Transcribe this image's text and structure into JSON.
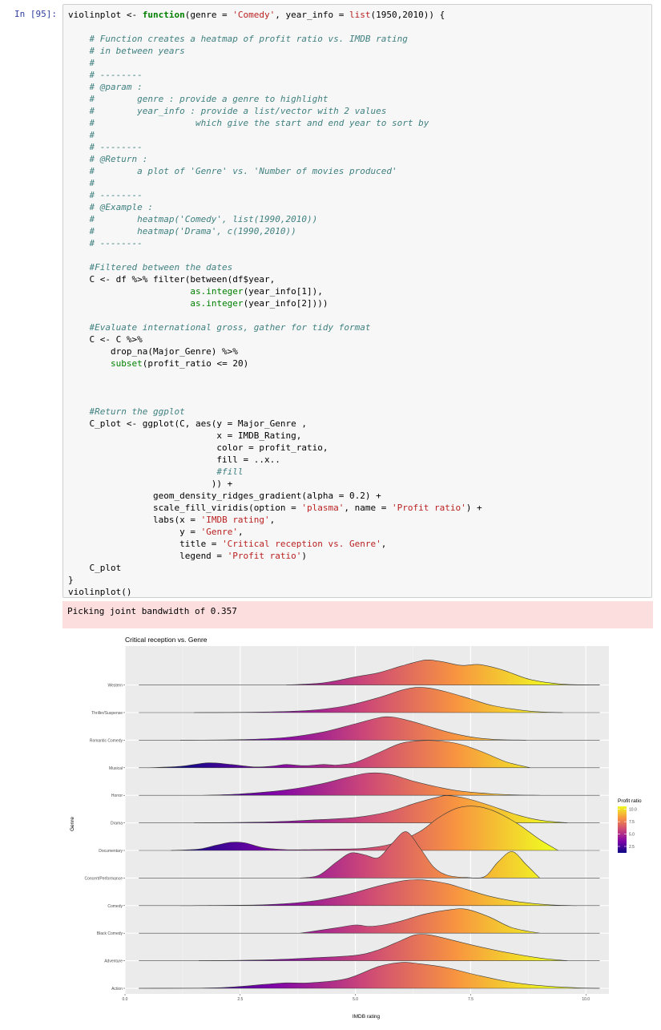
{
  "cell": {
    "prompt": "In [95]:",
    "code_lines": [
      [
        [
          "violinplot <- ",
          ""
        ],
        [
          "function",
          "k"
        ],
        [
          "(genre = ",
          ""
        ],
        [
          "'Comedy'",
          "s"
        ],
        [
          ", year_info = ",
          ""
        ],
        [
          "list",
          "s"
        ],
        [
          "(1950,2010)) {",
          ""
        ]
      ],
      [
        [
          "",
          ""
        ]
      ],
      [
        [
          "    # Function creates a heatmap of profit ratio vs. IMDB rating",
          "c"
        ]
      ],
      [
        [
          "    # in between years",
          "c"
        ]
      ],
      [
        [
          "    #",
          "c"
        ]
      ],
      [
        [
          "    # --------",
          "c"
        ]
      ],
      [
        [
          "    # @param :",
          "c"
        ]
      ],
      [
        [
          "    #        genre : provide a genre to highlight",
          "c"
        ]
      ],
      [
        [
          "    #        year_info : provide a list/vector with 2 values",
          "c"
        ]
      ],
      [
        [
          "    #                   which give the start and end year to sort by",
          "c"
        ]
      ],
      [
        [
          "    #",
          "c"
        ]
      ],
      [
        [
          "    # --------",
          "c"
        ]
      ],
      [
        [
          "    # @Return :",
          "c"
        ]
      ],
      [
        [
          "    #        a plot of 'Genre' vs. 'Number of movies produced'",
          "c"
        ]
      ],
      [
        [
          "    #",
          "c"
        ]
      ],
      [
        [
          "    # --------",
          "c"
        ]
      ],
      [
        [
          "    # @Example :",
          "c"
        ]
      ],
      [
        [
          "    #        heatmap('Comedy', list(1990,2010))",
          "c"
        ]
      ],
      [
        [
          "    #        heatmap('Drama', c(1990,2010))",
          "c"
        ]
      ],
      [
        [
          "    # --------",
          "c"
        ]
      ],
      [
        [
          "",
          ""
        ]
      ],
      [
        [
          "    #Filtered between the dates",
          "c"
        ]
      ],
      [
        [
          "    C <- df %>% filter(between(df$year,",
          ""
        ]
      ],
      [
        [
          "                       ",
          ""
        ],
        [
          "as.integer",
          "n"
        ],
        [
          "(year_info[1]),",
          ""
        ]
      ],
      [
        [
          "                       ",
          ""
        ],
        [
          "as.integer",
          "n"
        ],
        [
          "(year_info[2])))",
          ""
        ]
      ],
      [
        [
          "",
          ""
        ]
      ],
      [
        [
          "    #Evaluate international gross, gather for tidy format",
          "c"
        ]
      ],
      [
        [
          "    C <- C %>%",
          ""
        ]
      ],
      [
        [
          "        drop_na(Major_Genre) %>%",
          ""
        ]
      ],
      [
        [
          "        ",
          ""
        ],
        [
          "subset",
          "n"
        ],
        [
          "(profit_ratio <= 20)",
          ""
        ]
      ],
      [
        [
          "",
          ""
        ]
      ],
      [
        [
          "",
          ""
        ]
      ],
      [
        [
          "",
          ""
        ]
      ],
      [
        [
          "    #Return the ggplot",
          "c"
        ]
      ],
      [
        [
          "    C_plot <- ggplot(C, aes(y = Major_Genre ,",
          ""
        ]
      ],
      [
        [
          "                            x = IMDB_Rating,",
          ""
        ]
      ],
      [
        [
          "                            color = profit_ratio,",
          ""
        ]
      ],
      [
        [
          "                            fill = ..x..",
          ""
        ]
      ],
      [
        [
          "                            #fill",
          "c"
        ]
      ],
      [
        [
          "                           )) +",
          ""
        ]
      ],
      [
        [
          "                geom_density_ridges_gradient(alpha = 0.2) +",
          ""
        ]
      ],
      [
        [
          "                scale_fill_viridis(option = ",
          ""
        ],
        [
          "'plasma'",
          "s"
        ],
        [
          ", name = ",
          ""
        ],
        [
          "'Profit ratio'",
          "s"
        ],
        [
          ") +",
          ""
        ]
      ],
      [
        [
          "                labs(x = ",
          ""
        ],
        [
          "'IMDB rating'",
          "s"
        ],
        [
          ",",
          ""
        ]
      ],
      [
        [
          "                     y = ",
          ""
        ],
        [
          "'Genre'",
          "s"
        ],
        [
          ",",
          ""
        ]
      ],
      [
        [
          "                     title = ",
          ""
        ],
        [
          "'Critical reception vs. Genre'",
          "s"
        ],
        [
          ",",
          ""
        ]
      ],
      [
        [
          "                     legend = ",
          ""
        ],
        [
          "'Profit ratio'",
          "s"
        ],
        [
          ")",
          ""
        ]
      ],
      [
        [
          "    C_plot",
          ""
        ]
      ],
      [
        [
          "}",
          ""
        ]
      ],
      [
        [
          "violinplot()",
          ""
        ]
      ]
    ]
  },
  "stderr": "Picking joint bandwidth of 0.357",
  "chart_data": {
    "type": "ridgeline",
    "title": "Critical reception vs. Genre",
    "xlabel": "IMDB rating",
    "ylabel": "Genre",
    "xlim": [
      0,
      10.5
    ],
    "x_ticks": [
      0.0,
      2.5,
      5.0,
      7.5,
      10.0
    ],
    "x_tick_labels": [
      "0.0",
      "2.5",
      "5.0",
      "7.5",
      "10.0"
    ],
    "grid": true,
    "legend": {
      "title": "Profit ratio",
      "position": "right",
      "ticks": [
        "10.0",
        "7.5",
        "5.0",
        "2.5"
      ],
      "palette": [
        "#0d0887",
        "#7e03a8",
        "#cc4778",
        "#f89540",
        "#f0f921"
      ]
    },
    "categories": [
      "Action",
      "Adventure",
      "Black Comedy",
      "Comedy",
      "Concert/Performance",
      "Documentary",
      "Drama",
      "Horror",
      "Musical",
      "Romantic Comedy",
      "Thriller/Suspense",
      "Western"
    ],
    "ridges": [
      {
        "genre": "Action",
        "x": [
          0.3,
          2.0,
          3.0,
          3.5,
          4.0,
          4.8,
          5.5,
          6.0,
          6.4,
          7.0,
          7.6,
          8.3,
          9.0,
          9.8,
          10.3
        ],
        "y": [
          0,
          0.02,
          0.14,
          0.2,
          0.2,
          0.35,
          0.8,
          0.95,
          0.9,
          0.75,
          0.5,
          0.25,
          0.1,
          0.02,
          0
        ]
      },
      {
        "genre": "Adventure",
        "x": [
          1.6,
          3.0,
          4.0,
          5.0,
          5.5,
          6.0,
          6.3,
          6.6,
          7.0,
          7.6,
          8.3,
          9.0,
          9.6
        ],
        "y": [
          0,
          0.03,
          0.1,
          0.2,
          0.4,
          0.75,
          0.95,
          0.95,
          0.8,
          0.55,
          0.3,
          0.1,
          0
        ]
      },
      {
        "genre": "Black Comedy",
        "x": [
          3.8,
          4.6,
          5.0,
          5.3,
          5.6,
          6.0,
          6.5,
          7.0,
          7.4,
          7.9,
          8.4,
          9.0
        ],
        "y": [
          0,
          0.2,
          0.3,
          0.25,
          0.3,
          0.45,
          0.7,
          0.85,
          0.88,
          0.6,
          0.2,
          0
        ]
      },
      {
        "genre": "Comedy",
        "x": [
          1.2,
          3.0,
          4.0,
          4.8,
          5.5,
          6.0,
          6.3,
          6.6,
          7.0,
          7.4,
          7.9,
          8.5,
          9.2,
          9.8
        ],
        "y": [
          0,
          0.03,
          0.15,
          0.4,
          0.72,
          0.9,
          0.95,
          0.92,
          0.8,
          0.6,
          0.35,
          0.15,
          0.03,
          0
        ]
      },
      {
        "genre": "Concert/Performance",
        "x": [
          3.8,
          4.2,
          4.6,
          4.9,
          5.2,
          5.5,
          5.8,
          6.1,
          6.4,
          6.7,
          7.0,
          7.4,
          7.8,
          8.1,
          8.4,
          8.7,
          9.0
        ],
        "y": [
          0,
          0.1,
          0.6,
          0.92,
          0.85,
          0.75,
          1.28,
          1.7,
          1.1,
          0.4,
          0.1,
          0.02,
          0.05,
          0.6,
          0.97,
          0.5,
          0
        ]
      },
      {
        "genre": "Documentary",
        "x": [
          1.0,
          1.6,
          2.0,
          2.3,
          2.6,
          3.0,
          3.5,
          4.0,
          4.6,
          5.2,
          5.8,
          6.4,
          6.8,
          7.2,
          7.6,
          8.0,
          8.5,
          9.0,
          9.4
        ],
        "y": [
          0,
          0.05,
          0.2,
          0.3,
          0.28,
          0.1,
          0.03,
          0.03,
          0.05,
          0.08,
          0.25,
          0.7,
          1.2,
          1.55,
          1.62,
          1.45,
          1.0,
          0.4,
          0
        ]
      },
      {
        "genre": "Drama",
        "x": [
          1.5,
          3.0,
          4.0,
          5.0,
          5.7,
          6.3,
          6.8,
          7.0,
          7.4,
          7.9,
          8.5,
          9.0,
          9.6
        ],
        "y": [
          0,
          0.03,
          0.1,
          0.2,
          0.4,
          0.72,
          0.95,
          1.0,
          0.9,
          0.65,
          0.3,
          0.1,
          0
        ]
      },
      {
        "genre": "Horror",
        "x": [
          1.7,
          2.5,
          3.5,
          4.2,
          4.8,
          5.2,
          5.5,
          5.8,
          6.3,
          6.8,
          7.3,
          8.0,
          8.6,
          9.0
        ],
        "y": [
          0,
          0.05,
          0.2,
          0.4,
          0.65,
          0.8,
          0.82,
          0.75,
          0.5,
          0.3,
          0.15,
          0.05,
          0.01,
          0
        ]
      },
      {
        "genre": "Musical",
        "x": [
          0.5,
          1.2,
          1.8,
          2.3,
          2.8,
          3.2,
          3.5,
          3.8,
          4.0,
          4.3,
          4.6,
          5.0,
          5.5,
          6.0,
          6.5,
          7.0,
          7.4,
          7.8,
          8.3,
          8.8
        ],
        "y": [
          0,
          0.05,
          0.18,
          0.12,
          0.03,
          0.06,
          0.12,
          0.08,
          0.08,
          0.12,
          0.1,
          0.2,
          0.55,
          0.9,
          1.0,
          0.95,
          0.8,
          0.55,
          0.2,
          0
        ]
      },
      {
        "genre": "Romantic Comedy",
        "x": [
          1.2,
          2.5,
          3.5,
          4.3,
          5.0,
          5.5,
          5.8,
          6.2,
          6.6,
          7.0,
          7.5,
          8.0,
          8.7
        ],
        "y": [
          0,
          0.02,
          0.1,
          0.3,
          0.6,
          0.82,
          0.85,
          0.7,
          0.5,
          0.3,
          0.12,
          0.03,
          0
        ]
      },
      {
        "genre": "Thriller/Suspense",
        "x": [
          1.5,
          3.0,
          4.0,
          4.8,
          5.5,
          6.0,
          6.3,
          6.6,
          7.0,
          7.5,
          8.0,
          8.8,
          9.5
        ],
        "y": [
          0,
          0.02,
          0.08,
          0.25,
          0.55,
          0.82,
          0.92,
          0.9,
          0.75,
          0.5,
          0.25,
          0.05,
          0
        ]
      },
      {
        "genre": "Western",
        "x": [
          3.5,
          4.3,
          5.0,
          5.5,
          6.0,
          6.4,
          6.6,
          6.9,
          7.3,
          7.7,
          8.2,
          8.8,
          9.5,
          10.3
        ],
        "y": [
          0,
          0.08,
          0.3,
          0.45,
          0.7,
          0.88,
          0.92,
          0.85,
          0.72,
          0.75,
          0.55,
          0.2,
          0.03,
          0
        ]
      }
    ]
  }
}
